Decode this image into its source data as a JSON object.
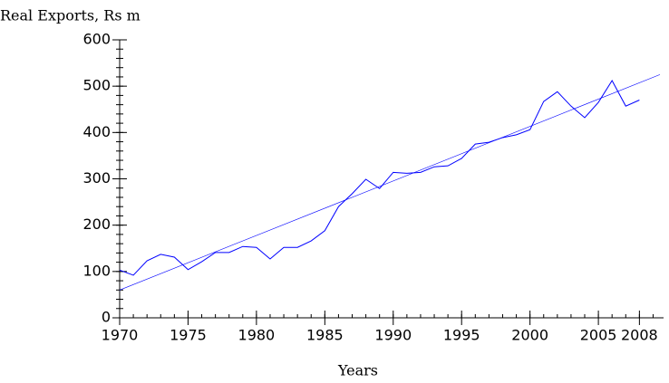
{
  "chart_data": {
    "type": "line",
    "title": "Real Exports, Rs m",
    "xlabel": "Years",
    "xlim": [
      1970,
      2009.5
    ],
    "xticks": [
      1970,
      1975,
      1980,
      1985,
      1990,
      1995,
      2000,
      2005,
      2008
    ],
    "ylim": [
      0,
      600
    ],
    "yticks": [
      0,
      100,
      200,
      300,
      400,
      500,
      600
    ],
    "series": [
      {
        "color": "#0000ff",
        "x": [
          1970,
          1971,
          1972,
          1973,
          1974,
          1975,
          1976,
          1977,
          1978,
          1979,
          1980,
          1981,
          1982,
          1983,
          1984,
          1985,
          1986,
          1987,
          1988,
          1989,
          1990,
          1991,
          1992,
          1993,
          1994,
          1995,
          1996,
          1997,
          1998,
          1999,
          2000,
          2001,
          2002,
          2003,
          2004,
          2005,
          2006,
          2007,
          2008
        ],
        "values": [
          103,
          92,
          123,
          137,
          131,
          104,
          121,
          141,
          141,
          154,
          152,
          127,
          152,
          152,
          166,
          188,
          240,
          268,
          299,
          279,
          314,
          312,
          314,
          326,
          328,
          344,
          375,
          379,
          389,
          395,
          406,
          467,
          488,
          457,
          432,
          465,
          512,
          457,
          470
        ]
      },
      {
        "color": "#0000ff",
        "x": [
          1970,
          2009.5
        ],
        "values": [
          60,
          525
        ],
        "dashed": true
      }
    ]
  }
}
